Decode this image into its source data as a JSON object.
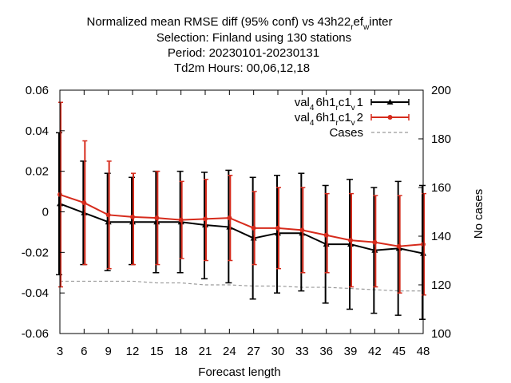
{
  "title_lines": [
    "Normalized mean RMSE diff (95% conf) vs 43h22",
    "Selection: Finland using   130 stations",
    "Period: 20230101-20230131",
    "Td2m   Hours:  00,06,12,18"
  ],
  "title_tail": {
    "sub1": "r",
    "mid": "ef",
    "sub2": "w",
    "end": "inter"
  },
  "chart_data": {
    "type": "line",
    "x": [
      3,
      6,
      9,
      12,
      15,
      18,
      21,
      24,
      27,
      30,
      33,
      36,
      39,
      42,
      45,
      48
    ],
    "xlabel": "Forecast length",
    "ylabel_right": "No cases",
    "xlim": [
      3,
      48
    ],
    "ylim": [
      -0.06,
      0.06
    ],
    "y2lim": [
      100,
      200
    ],
    "xticks": [
      3,
      6,
      9,
      12,
      15,
      18,
      21,
      24,
      27,
      30,
      33,
      36,
      39,
      42,
      45,
      48
    ],
    "yticks": [
      "-0.06",
      "-0.04",
      "-0.02",
      "0",
      "0.02",
      "0.04",
      "0.06"
    ],
    "y2ticks": [
      "100",
      "120",
      "140",
      "160",
      "180",
      "200"
    ],
    "legend_position": "top-right",
    "series": [
      {
        "legend": {
          "pre": "val",
          "sub1": "4",
          "mid": "6h1",
          "sub2": "r",
          "mid2": "c1",
          "sub3": "v",
          "post": "1"
        },
        "color": "#000000",
        "marker": "triangle",
        "values": [
          0.004,
          -0.0005,
          -0.005,
          -0.005,
          -0.005,
          -0.005,
          -0.0065,
          -0.0075,
          -0.013,
          -0.0105,
          -0.0105,
          -0.016,
          -0.016,
          -0.019,
          -0.018,
          -0.0205
        ],
        "lower": [
          -0.031,
          -0.026,
          -0.029,
          -0.026,
          -0.03,
          -0.03,
          -0.033,
          -0.035,
          -0.043,
          -0.04,
          -0.039,
          -0.045,
          -0.048,
          -0.05,
          -0.051,
          -0.053
        ],
        "upper": [
          0.039,
          0.025,
          0.019,
          0.017,
          0.02,
          0.02,
          0.0195,
          0.0205,
          0.017,
          0.018,
          0.019,
          0.013,
          0.016,
          0.012,
          0.015,
          0.013
        ]
      },
      {
        "legend": {
          "pre": "val",
          "sub1": "4",
          "mid": "6h1",
          "sub2": "r",
          "mid2": "c1",
          "sub3": "v",
          "post": "2"
        },
        "color": "#d62b1c",
        "marker": "cross",
        "values": [
          0.0085,
          0.0045,
          -0.0015,
          -0.0025,
          -0.003,
          -0.004,
          -0.0035,
          -0.003,
          -0.008,
          -0.008,
          -0.009,
          -0.0115,
          -0.014,
          -0.015,
          -0.017,
          -0.016
        ],
        "lower": [
          -0.037,
          -0.026,
          -0.028,
          -0.026,
          -0.026,
          -0.023,
          -0.024,
          -0.024,
          -0.026,
          -0.028,
          -0.03,
          -0.03,
          -0.037,
          -0.037,
          -0.04,
          -0.041
        ],
        "upper": [
          0.054,
          0.035,
          0.025,
          0.019,
          0.02,
          0.015,
          0.016,
          0.018,
          0.01,
          0.012,
          0.012,
          0.009,
          0.009,
          0.008,
          0.008,
          0.009
        ]
      }
    ],
    "cases": {
      "legend": "Cases",
      "color": "#9a9a9a",
      "values": [
        121.5,
        121.5,
        121.5,
        121.5,
        120.8,
        120.8,
        120,
        120,
        119.5,
        119.5,
        119,
        119,
        118.5,
        118,
        117.5,
        117.5
      ]
    }
  }
}
